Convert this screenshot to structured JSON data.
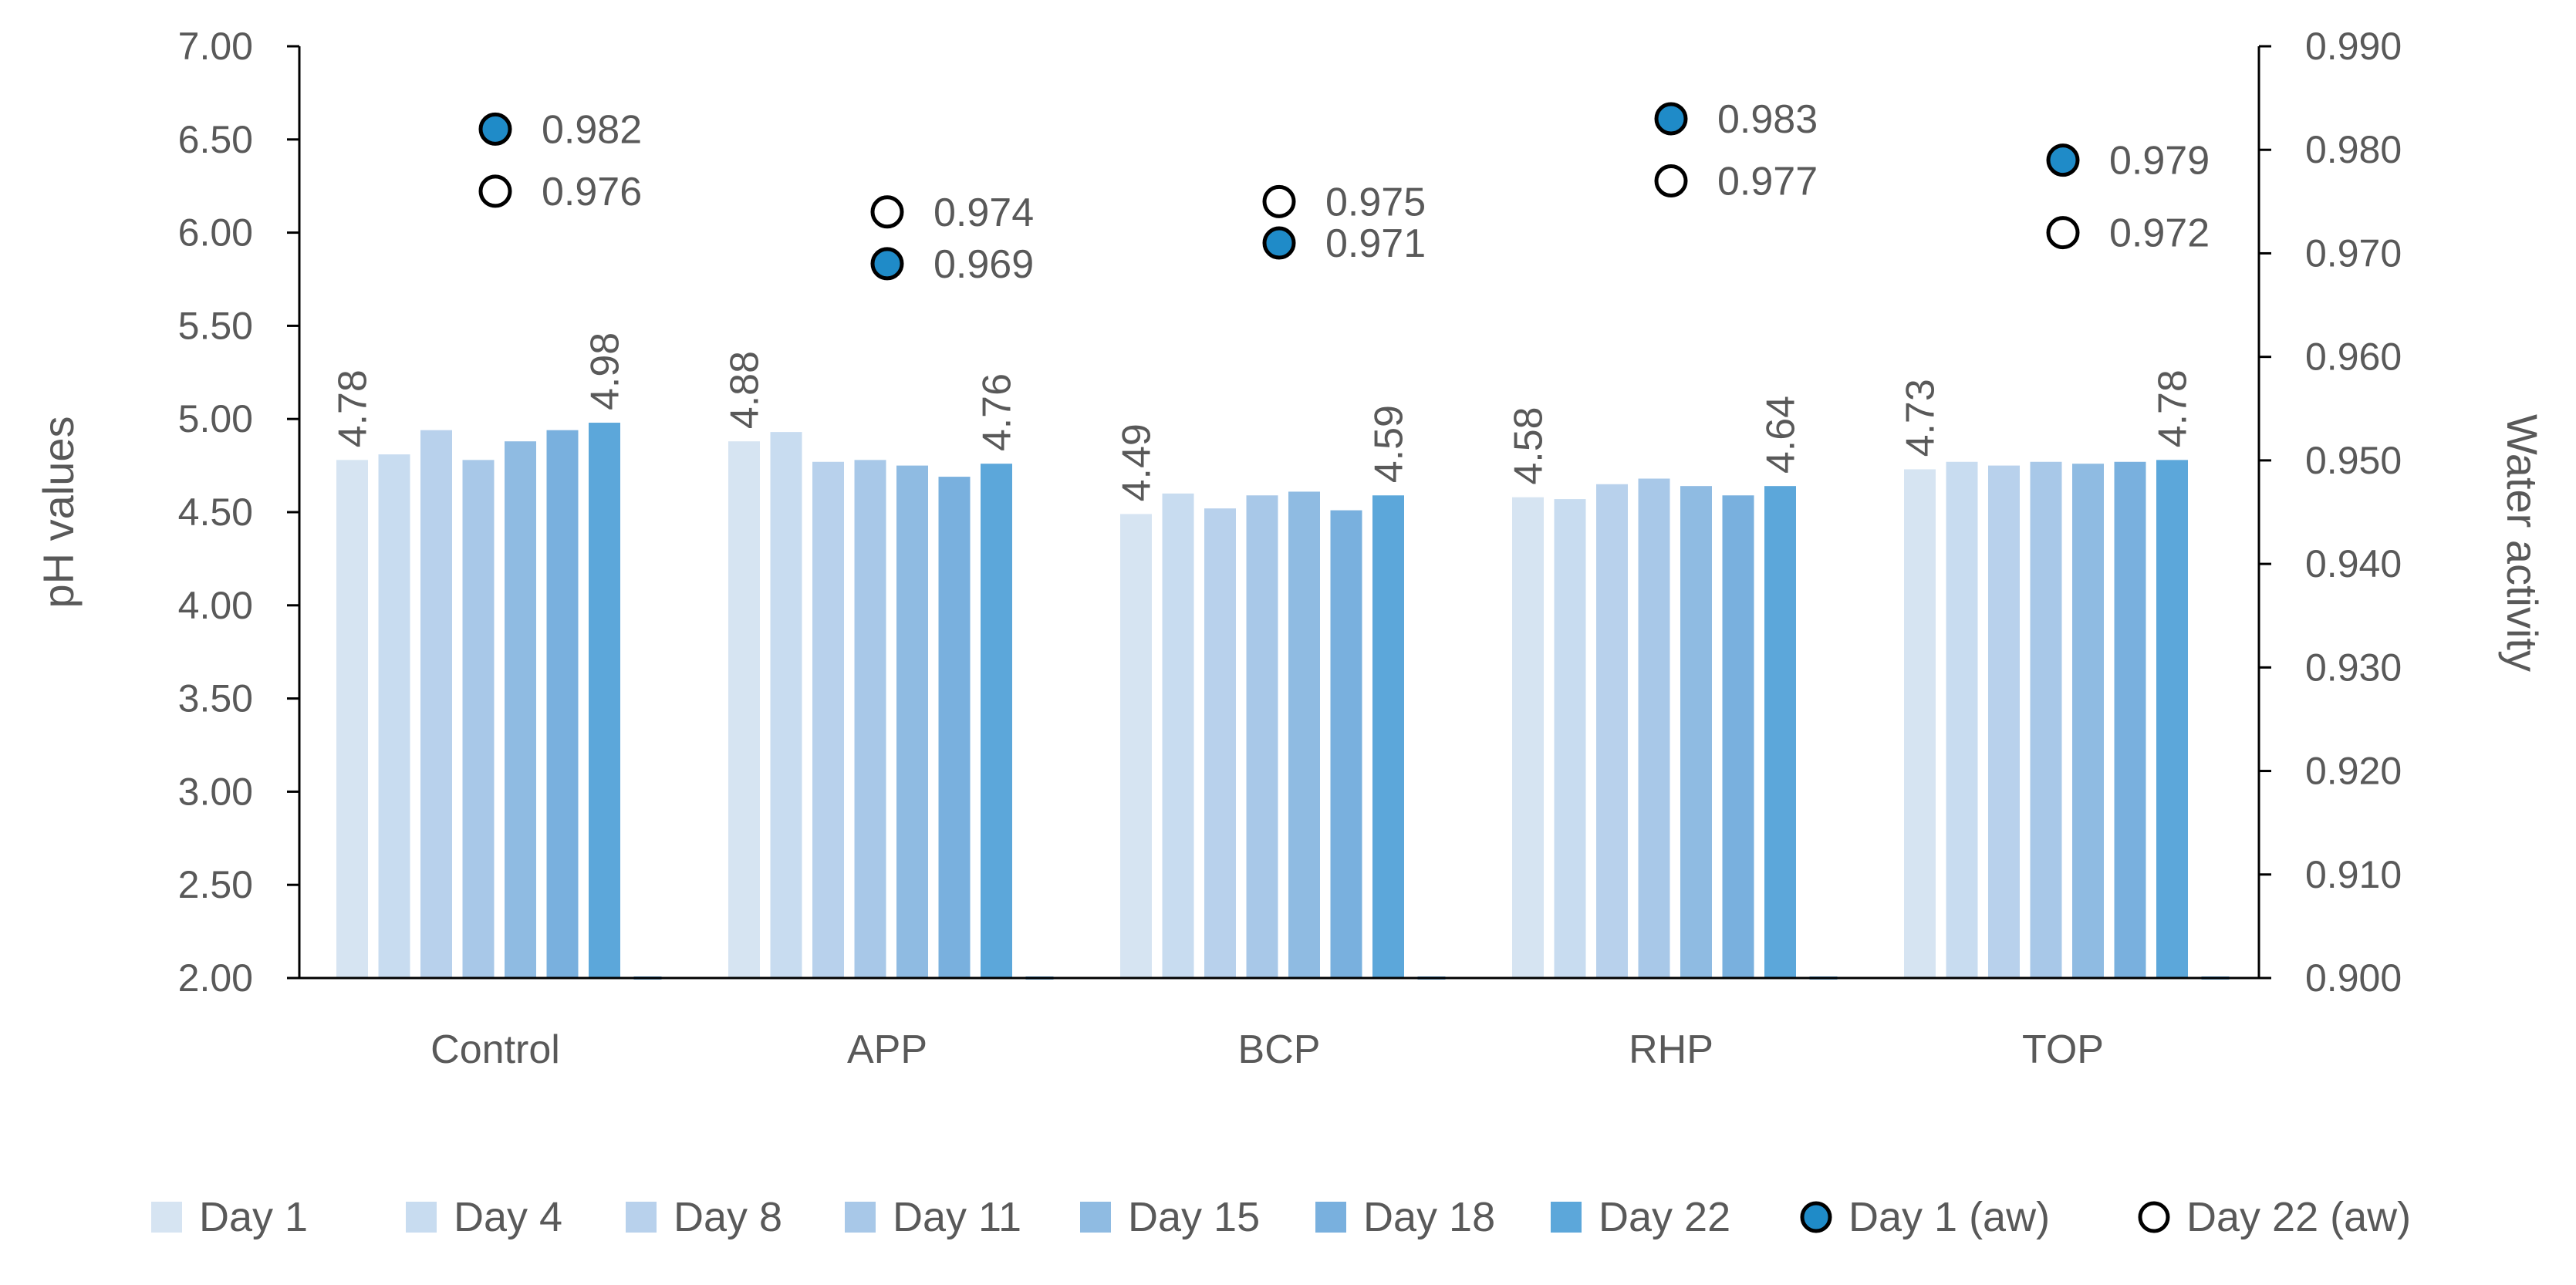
{
  "chart_data": {
    "type": "bar",
    "categories": [
      "Control",
      "APP",
      "BCP",
      "RHP",
      "TOP"
    ],
    "series": [
      {
        "name": "Day 1",
        "color": "#d6e4f2",
        "values": [
          4.78,
          4.88,
          4.49,
          4.58,
          4.73
        ]
      },
      {
        "name": "Day 4",
        "color": "#c8dcf0",
        "values": [
          4.81,
          4.93,
          4.6,
          4.57,
          4.77
        ]
      },
      {
        "name": "Day 8",
        "color": "#b8d1ec",
        "values": [
          4.94,
          4.77,
          4.52,
          4.65,
          4.75
        ]
      },
      {
        "name": "Day 11",
        "color": "#a8c8e8",
        "values": [
          4.78,
          4.78,
          4.59,
          4.68,
          4.77
        ]
      },
      {
        "name": "Day 15",
        "color": "#8fbbe2",
        "values": [
          4.88,
          4.75,
          4.61,
          4.64,
          4.76
        ]
      },
      {
        "name": "Day 18",
        "color": "#79b0de",
        "values": [
          4.94,
          4.69,
          4.51,
          4.59,
          4.77
        ]
      },
      {
        "name": "Day 22",
        "color": "#5ca7da",
        "values": [
          4.98,
          4.76,
          4.59,
          4.64,
          4.78
        ]
      }
    ],
    "aw_series": [
      {
        "name": "Day 1 (aw)",
        "fill": "#1f8bc8",
        "values": [
          0.982,
          0.969,
          0.971,
          0.983,
          0.979
        ],
        "labels": [
          "0.982",
          "0.969",
          "0.971",
          "0.983",
          "0.979"
        ]
      },
      {
        "name": "Day 22 (aw)",
        "fill": "#ffffff",
        "values": [
          0.976,
          0.974,
          0.975,
          0.977,
          0.972
        ],
        "labels": [
          "0.976",
          "0.974",
          "0.975",
          "0.977",
          "0.972"
        ]
      }
    ],
    "day1_labels": [
      "4.78",
      "4.88",
      "4.49",
      "4.58",
      "4.73"
    ],
    "day22_labels": [
      "4.98",
      "4.76",
      "4.59",
      "4.64",
      "4.78"
    ],
    "ylabel": "pH values",
    "y2label": "Water activity",
    "ylim": [
      2.0,
      7.0
    ],
    "y2lim": [
      0.9,
      0.99
    ],
    "yticks": [
      "2.00",
      "2.50",
      "3.00",
      "3.50",
      "4.00",
      "4.50",
      "5.00",
      "5.50",
      "6.00",
      "6.50",
      "7.00"
    ],
    "y2ticks": [
      "0.900",
      "0.910",
      "0.920",
      "0.930",
      "0.940",
      "0.950",
      "0.960",
      "0.970",
      "0.980",
      "0.990"
    ],
    "legend_position": "bottom",
    "grid": false
  }
}
